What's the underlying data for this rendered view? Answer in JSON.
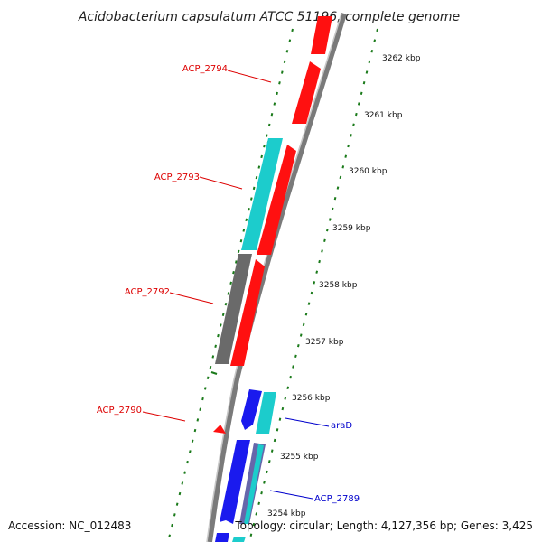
{
  "title": "Acidobacterium capsulatum ATCC 51196, complete genome",
  "footer": {
    "accession": "Accession: NC_012483",
    "topology": "Topology: circular; Length: 4,127,356 bp; Genes: 3,425"
  },
  "colors": {
    "backbone": "#808080",
    "ticks": "#1a7a1a",
    "red_gene": "#ff1010",
    "cyan_gene": "#1ccccc",
    "grey_gene": "#6a6a6a",
    "blue_gene": "#1a1aee",
    "red_label": "#dd0000",
    "blue_label": "#0000cc"
  },
  "scale": {
    "tick_labels": [
      "3262 kbp",
      "3261 kbp",
      "3260 kbp",
      "3259 kbp",
      "3258 kbp",
      "3257 kbp",
      "3256 kbp",
      "3255 kbp",
      "3254 kbp"
    ]
  },
  "gene_labels": [
    {
      "text": "ACP_2794",
      "color": "red"
    },
    {
      "text": "ACP_2793",
      "color": "red"
    },
    {
      "text": "ACP_2792",
      "color": "red"
    },
    {
      "text": "ACP_2790",
      "color": "red"
    },
    {
      "text": "araD",
      "color": "blue"
    },
    {
      "text": "ACP_2789",
      "color": "blue"
    }
  ]
}
